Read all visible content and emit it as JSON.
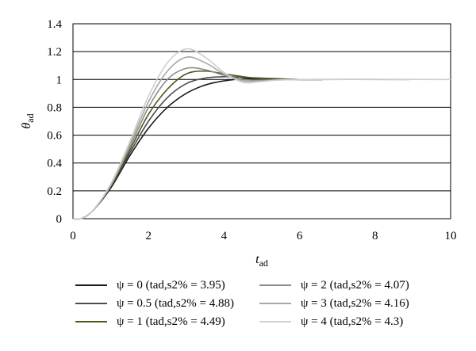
{
  "chart_data": {
    "type": "line",
    "title": "",
    "xlabel": "t_ad",
    "ylabel": "θ_ad",
    "xlim": [
      0,
      10
    ],
    "ylim": [
      0,
      1.4
    ],
    "xticks": [
      "0",
      "2",
      "4",
      "6",
      "8",
      "10"
    ],
    "yticks": [
      "0",
      "0.2",
      "0.4",
      "0.6",
      "0.8",
      "1",
      "1.2",
      "1.4"
    ],
    "grid": "horizontal",
    "legend_position": "bottom",
    "series": [
      {
        "name": "ψ = 0 (tad,s2% = 3.95)",
        "color": "#1a1a1a",
        "psi": 0,
        "settling_time": 3.95,
        "x": [
          0,
          0.2,
          0.5,
          1.0,
          1.5,
          2.0,
          2.5,
          3.0,
          3.5,
          4.0,
          4.5,
          5.0,
          6.0,
          6.6
        ],
        "y": [
          0,
          0.0,
          0.05,
          0.22,
          0.45,
          0.65,
          0.8,
          0.9,
          0.96,
          0.99,
          1.005,
          1.005,
          1.0,
          1.0
        ]
      },
      {
        "name": "ψ = 0.5 (tad,s2% = 4.88)",
        "color": "#4d4d4d",
        "psi": 0.5,
        "settling_time": 4.88,
        "x": [
          0,
          0.2,
          0.5,
          1.0,
          1.5,
          2.0,
          2.5,
          3.0,
          3.5,
          4.0,
          4.5,
          5.0,
          6.0,
          6.6
        ],
        "y": [
          0,
          0.0,
          0.05,
          0.23,
          0.47,
          0.7,
          0.87,
          0.97,
          1.01,
          1.02,
          1.015,
          1.01,
          1.0,
          1.0
        ]
      },
      {
        "name": "ψ = 1 (tad,s2% = 4.49)",
        "color": "#4a5a1a",
        "psi": 1,
        "settling_time": 4.49,
        "x": [
          0,
          0.2,
          0.5,
          1.0,
          1.5,
          2.0,
          2.5,
          3.0,
          3.5,
          4.0,
          4.5,
          5.0,
          6.0,
          6.6
        ],
        "y": [
          0,
          0.0,
          0.05,
          0.23,
          0.49,
          0.75,
          0.93,
          1.04,
          1.06,
          1.04,
          1.02,
          1.005,
          1.0,
          1.0
        ]
      },
      {
        "name": "ψ = 2 (tad,s2% = 4.07)",
        "color": "#8c8c8c",
        "psi": 2,
        "settling_time": 4.07,
        "x": [
          0,
          0.2,
          0.5,
          1.0,
          1.5,
          2.0,
          2.5,
          3.0,
          3.5,
          4.0,
          4.5,
          5.0,
          6.0,
          8.9
        ],
        "y": [
          0,
          0.0,
          0.05,
          0.24,
          0.51,
          0.8,
          1.0,
          1.08,
          1.07,
          1.03,
          1.0,
          0.995,
          1.0,
          1.0
        ]
      },
      {
        "name": "ψ = 3 (tad,s2% = 4.16)",
        "color": "#a8a8a8",
        "psi": 3,
        "settling_time": 4.16,
        "x": [
          0,
          0.2,
          0.5,
          1.0,
          1.5,
          2.0,
          2.5,
          3.0,
          3.5,
          4.0,
          4.5,
          5.0,
          6.0,
          8.9
        ],
        "y": [
          0,
          0.0,
          0.05,
          0.24,
          0.53,
          0.84,
          1.06,
          1.16,
          1.12,
          1.04,
          0.99,
          0.99,
          1.0,
          1.0
        ]
      },
      {
        "name": "ψ = 4 (tad,s2% = 4.3)",
        "color": "#cfcfcf",
        "psi": 4,
        "settling_time": 4.3,
        "x": [
          0,
          0.2,
          0.5,
          1.0,
          1.5,
          2.0,
          2.5,
          3.0,
          3.5,
          4.0,
          4.5,
          5.0,
          6.0,
          10.0
        ],
        "y": [
          0,
          0.0,
          0.05,
          0.25,
          0.55,
          0.88,
          1.12,
          1.22,
          1.16,
          1.05,
          0.98,
          0.985,
          1.0,
          1.0
        ]
      }
    ]
  }
}
